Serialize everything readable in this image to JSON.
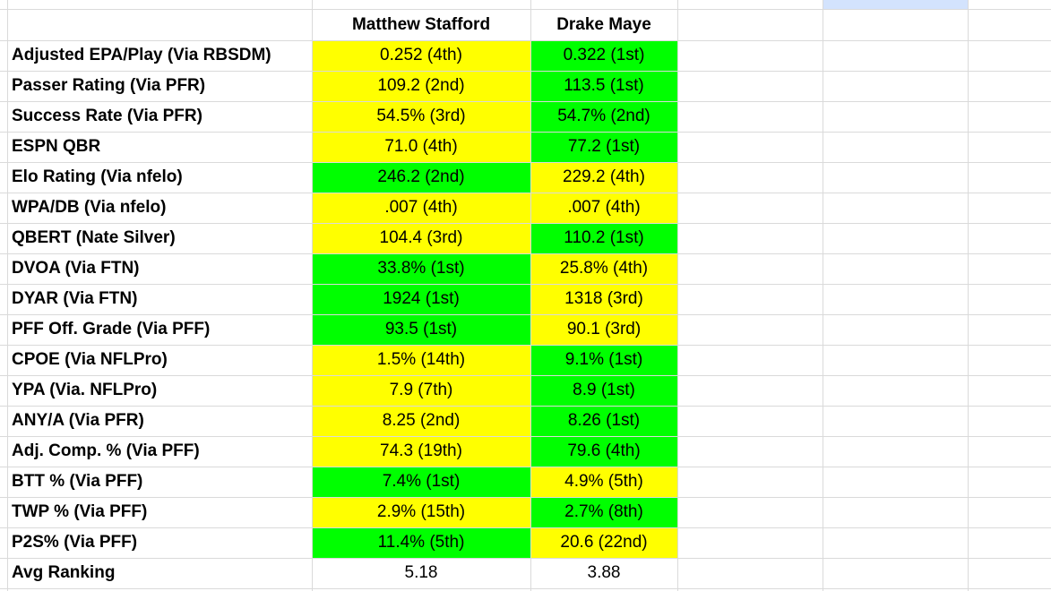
{
  "table": {
    "columns": [
      "Matthew Stafford",
      "Drake Maye"
    ],
    "rows": [
      {
        "label": "Adjusted EPA/Play (Via RBSDM)",
        "cells": [
          "0.252 (4th)",
          "0.322 (1st)"
        ],
        "colors": [
          "#ffff00",
          "#00ff00"
        ]
      },
      {
        "label": "Passer Rating (Via PFR)",
        "cells": [
          "109.2 (2nd)",
          "113.5 (1st)"
        ],
        "colors": [
          "#ffff00",
          "#00ff00"
        ]
      },
      {
        "label": "Success Rate (Via PFR)",
        "cells": [
          "54.5% (3rd)",
          "54.7% (2nd)"
        ],
        "colors": [
          "#ffff00",
          "#00ff00"
        ]
      },
      {
        "label": "ESPN QBR",
        "cells": [
          "71.0 (4th)",
          "77.2 (1st)"
        ],
        "colors": [
          "#ffff00",
          "#00ff00"
        ]
      },
      {
        "label": "Elo Rating (Via nfelo)",
        "cells": [
          "246.2 (2nd)",
          "229.2 (4th)"
        ],
        "colors": [
          "#00ff00",
          "#ffff00"
        ]
      },
      {
        "label": "WPA/DB (Via nfelo)",
        "cells": [
          ".007 (4th)",
          ".007 (4th)"
        ],
        "colors": [
          "#ffff00",
          "#ffff00"
        ]
      },
      {
        "label": "QBERT (Nate Silver)",
        "cells": [
          "104.4 (3rd)",
          "110.2 (1st)"
        ],
        "colors": [
          "#ffff00",
          "#00ff00"
        ]
      },
      {
        "label": "DVOA (Via FTN)",
        "cells": [
          "33.8% (1st)",
          "25.8% (4th)"
        ],
        "colors": [
          "#00ff00",
          "#ffff00"
        ]
      },
      {
        "label": "DYAR (Via FTN)",
        "cells": [
          "1924 (1st)",
          "1318 (3rd)"
        ],
        "colors": [
          "#00ff00",
          "#ffff00"
        ]
      },
      {
        "label": "PFF Off. Grade (Via PFF)",
        "cells": [
          "93.5 (1st)",
          "90.1 (3rd)"
        ],
        "colors": [
          "#00ff00",
          "#ffff00"
        ]
      },
      {
        "label": "CPOE (Via NFLPro)",
        "cells": [
          "1.5% (14th)",
          "9.1% (1st)"
        ],
        "colors": [
          "#ffff00",
          "#00ff00"
        ]
      },
      {
        "label": "YPA (Via. NFLPro)",
        "cells": [
          "7.9 (7th)",
          "8.9 (1st)"
        ],
        "colors": [
          "#ffff00",
          "#00ff00"
        ]
      },
      {
        "label": "ANY/A (Via PFR)",
        "cells": [
          "8.25 (2nd)",
          "8.26 (1st)"
        ],
        "colors": [
          "#ffff00",
          "#00ff00"
        ]
      },
      {
        "label": "Adj. Comp. % (Via PFF)",
        "cells": [
          "74.3 (19th)",
          "79.6 (4th)"
        ],
        "colors": [
          "#ffff00",
          "#00ff00"
        ]
      },
      {
        "label": "BTT % (Via PFF)",
        "cells": [
          "7.4% (1st)",
          "4.9% (5th)"
        ],
        "colors": [
          "#00ff00",
          "#ffff00"
        ]
      },
      {
        "label": "TWP % (Via PFF)",
        "cells": [
          "2.9% (15th)",
          "2.7% (8th)"
        ],
        "colors": [
          "#ffff00",
          "#00ff00"
        ]
      },
      {
        "label": "P2S% (Via PFF)",
        "cells": [
          "11.4% (5th)",
          "20.6 (22nd)"
        ],
        "colors": [
          "#00ff00",
          "#ffff00"
        ]
      },
      {
        "label": "Avg Ranking",
        "cells": [
          "5.18",
          "3.88"
        ]
      }
    ]
  }
}
